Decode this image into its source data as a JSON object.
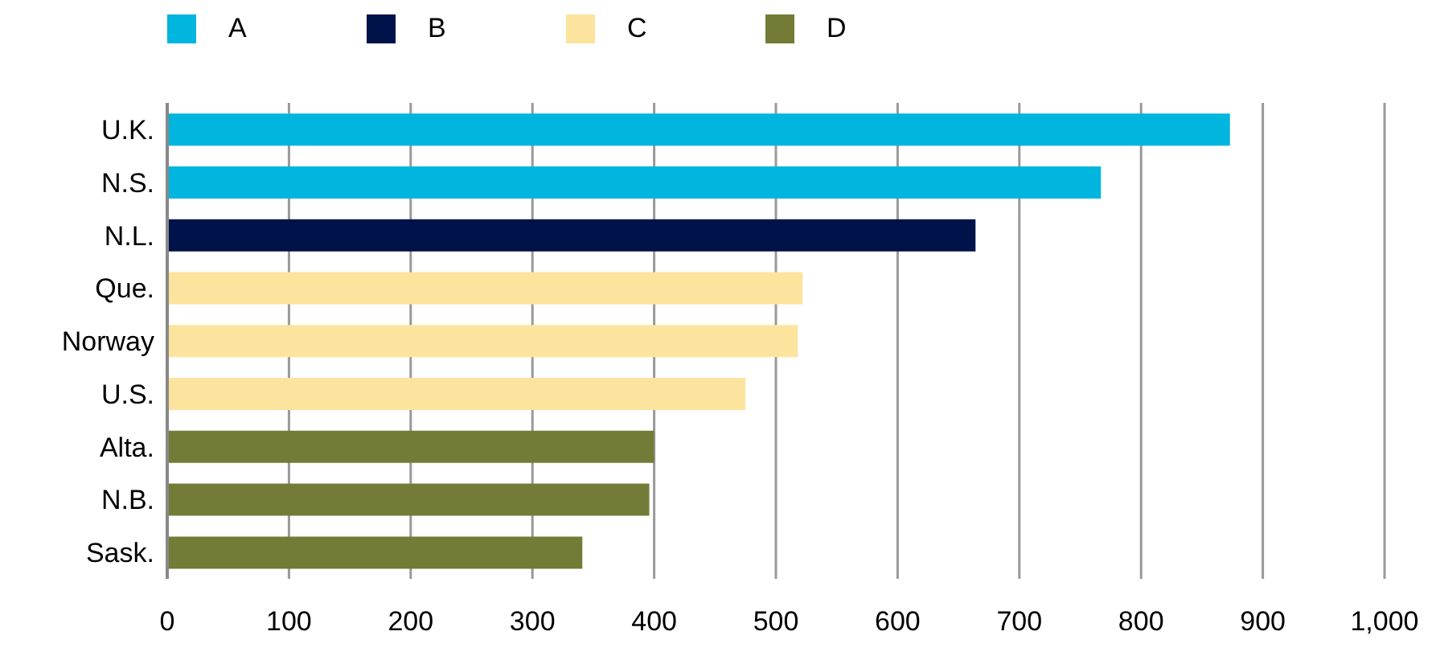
{
  "chart_data": {
    "type": "bar",
    "orientation": "horizontal",
    "stacked": true,
    "categories": [
      "U.K.",
      "N.S.",
      "N.L.",
      "Que.",
      "Norway",
      "U.S.",
      "Alta.",
      "N.B.",
      "Sask."
    ],
    "series": [
      {
        "name": "A",
        "color": "#00b5de",
        "values": [
          873,
          767,
          null,
          null,
          null,
          null,
          null,
          null,
          null
        ]
      },
      {
        "name": "B",
        "color": "#00124a",
        "values": [
          null,
          null,
          664,
          null,
          null,
          null,
          null,
          null,
          null
        ]
      },
      {
        "name": "C",
        "color": "#fde49e",
        "values": [
          null,
          null,
          null,
          522,
          518,
          475,
          null,
          null,
          null
        ]
      },
      {
        "name": "D",
        "color": "#747b36",
        "values": [
          null,
          null,
          null,
          null,
          null,
          null,
          400,
          396,
          341
        ]
      }
    ],
    "xlim": [
      0,
      1000
    ],
    "xticks": [
      0,
      100,
      200,
      300,
      400,
      500,
      600,
      700,
      800,
      900,
      {
        "value": 1000,
        "label": "1,000"
      }
    ],
    "grid": "x",
    "legend": "top left"
  }
}
